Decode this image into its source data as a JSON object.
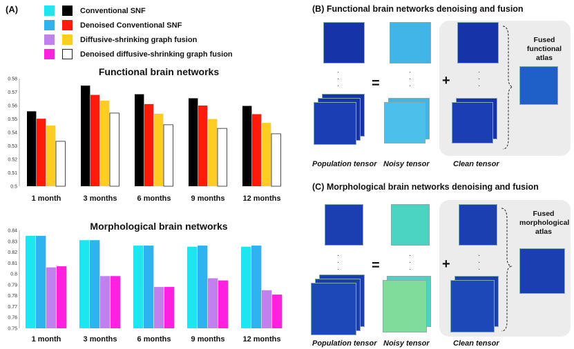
{
  "panel_a": {
    "label": "(A)",
    "legend": [
      {
        "label": "Conventional SNF",
        "colors": [
          "#1ee6f0",
          "#000000"
        ]
      },
      {
        "label": "Denoised Conventional SNF",
        "colors": [
          "#2cb3f0",
          "#ff1a0a"
        ]
      },
      {
        "label": "Diffusive-shrinking graph fusion",
        "colors": [
          "#c080ee",
          "#ffcc22"
        ]
      },
      {
        "label": "Denoised diffusive-shrinking graph fusion",
        "colors": [
          "#ff20e0",
          "#ffffff"
        ]
      }
    ]
  },
  "chart_data": [
    {
      "type": "bar",
      "title": "Functional brain networks",
      "categories": [
        "1 month",
        "3 months",
        "6 months",
        "9 months",
        "12 months"
      ],
      "series": [
        {
          "name": "Conventional SNF",
          "color": "#000000",
          "values": [
            0.5557,
            0.5748,
            0.5684,
            0.5654,
            0.5597
          ]
        },
        {
          "name": "Denoised Conventional SNF",
          "color": "#ff1a0a",
          "values": [
            0.5502,
            0.5679,
            0.5611,
            0.56,
            0.5536
          ]
        },
        {
          "name": "Diffusive-shrinking graph fusion",
          "color": "#ffcc22",
          "values": [
            0.5451,
            0.5637,
            0.5539,
            0.55,
            0.5471
          ]
        },
        {
          "name": "Denoised diffusive-shrinking graph fusion",
          "color": "#ffffff",
          "values": [
            0.5334,
            0.5544,
            0.5457,
            0.543,
            0.539
          ]
        }
      ],
      "ylim": [
        0.5,
        0.58
      ],
      "yticks": [
        "0.5",
        "0.51",
        "0.52",
        "0.53",
        "0.54",
        "0.55",
        "0.56",
        "0.57",
        "0.58"
      ],
      "grid": false
    },
    {
      "type": "bar",
      "title": "Morphological brain networks",
      "categories": [
        "1 month",
        "3 months",
        "6 months",
        "9 months",
        "12 months"
      ],
      "series": [
        {
          "name": "Conventional SNF",
          "color": "#1ee6f0",
          "values": [
            0.835,
            0.831,
            0.826,
            0.825,
            0.825
          ]
        },
        {
          "name": "Denoised Conventional SNF",
          "color": "#2cb3f0",
          "values": [
            0.835,
            0.831,
            0.826,
            0.826,
            0.826
          ]
        },
        {
          "name": "Diffusive-shrinking graph fusion",
          "color": "#c080ee",
          "values": [
            0.806,
            0.798,
            0.788,
            0.796,
            0.785
          ]
        },
        {
          "name": "Denoised diffusive-shrinking graph fusion",
          "color": "#ff20e0",
          "values": [
            0.807,
            0.798,
            0.788,
            0.794,
            0.781
          ]
        }
      ],
      "ylim": [
        0.75,
        0.84
      ],
      "yticks": [
        "0.75",
        "0.76",
        "0.77",
        "0.78",
        "0.79",
        "0.8",
        "0.81",
        "0.82",
        "0.83",
        "0.84"
      ],
      "grid": false
    }
  ],
  "panel_b": {
    "title": "(B) Functional brain networks denoising and fusion",
    "equals": "=",
    "plus": "+",
    "fused_label": "Fused functional atlas",
    "captions": [
      "Population tensor",
      "Noisy tensor",
      "Clean tensor"
    ]
  },
  "panel_c": {
    "title": "(C) Morphological brain networks denoising and fusion",
    "equals": "=",
    "plus": "+",
    "fused_label": "Fused morphological atlas",
    "captions": [
      "Population tensor",
      "Noisy tensor",
      "Clean tensor"
    ]
  }
}
